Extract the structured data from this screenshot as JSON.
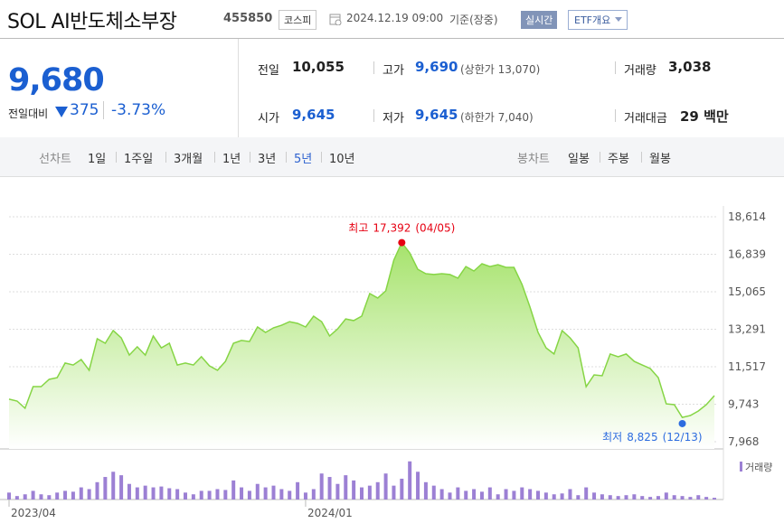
{
  "header": {
    "title": "SOL AI반도체소부장",
    "code": "455850",
    "market": "코스피",
    "datetime": "2024.12.19 09:00",
    "basis": "기준(장중)",
    "realtime": "실시간",
    "etf_info": "ETF개요"
  },
  "price": {
    "current": "9,680",
    "change_label": "전일대비",
    "change": "375",
    "change_pct": "-3.73%"
  },
  "stats": [
    {
      "label": "전일",
      "value": "10,055"
    },
    {
      "label": "고가",
      "value": "9,690",
      "note": "(상한가 13,070)"
    },
    {
      "label": "거래량",
      "value": "3,038"
    },
    {
      "label": "시가",
      "value": "9,645"
    },
    {
      "label": "저가",
      "value": "9,645",
      "note": "(하한가 7,040)"
    },
    {
      "label": "거래대금",
      "value": "29 백만"
    }
  ],
  "tabs": {
    "line_label": "선차트",
    "line_options": [
      "1일",
      "1주일",
      "3개월",
      "1년",
      "3년",
      "5년",
      "10년"
    ],
    "selected": 5,
    "candle_label": "봉차트",
    "candle_options": [
      "일봉",
      "주봉",
      "월봉"
    ]
  },
  "chart_data": [
    {
      "type": "area",
      "color": "#86d545",
      "ylim": [
        7968,
        18614
      ],
      "yticks": [
        {
          "value": 18614,
          "label": "18,614"
        },
        {
          "value": 16839,
          "label": "16,839"
        },
        {
          "value": 15065,
          "label": "15,065"
        },
        {
          "value": 13291,
          "label": "13,291"
        },
        {
          "value": 11517,
          "label": "11,517"
        },
        {
          "value": 9743,
          "label": "9,743"
        },
        {
          "value": 7968,
          "label": "7,968"
        }
      ],
      "grid": true,
      "values": [
        9980,
        9890,
        9550,
        10575,
        10575,
        10920,
        11000,
        11690,
        11600,
        11860,
        11350,
        12840,
        12630,
        13230,
        12880,
        12070,
        12460,
        12070,
        12970,
        12410,
        12630,
        11600,
        11690,
        11600,
        11990,
        11560,
        11350,
        11770,
        12630,
        12760,
        12710,
        13400,
        13140,
        13360,
        13480,
        13650,
        13570,
        13400,
        13910,
        13650,
        12970,
        13310,
        13780,
        13700,
        13910,
        14980,
        14770,
        15110,
        16560,
        17392,
        16900,
        16130,
        15920,
        15880,
        15920,
        15880,
        15710,
        16260,
        16050,
        16390,
        16260,
        16350,
        16220,
        16220,
        15410,
        14340,
        13140,
        12410,
        12120,
        13230,
        12880,
        12410,
        10570,
        11130,
        11090,
        12120,
        11990,
        12120,
        11770,
        11600,
        11430,
        11000,
        9760,
        9720,
        9120,
        9210,
        9420,
        9720,
        10150
      ],
      "annotations": [
        {
          "label": "최고",
          "value": 17392,
          "value_label": "17,392",
          "date": "(04/05)",
          "color": "#e60012"
        },
        {
          "label": "최저",
          "value": 8825,
          "value_label": "8,825",
          "date": "(12/13)",
          "color": "#2d6cdf"
        }
      ]
    },
    {
      "type": "bar",
      "name": "거래량",
      "color": "#9c80d4",
      "ylim": [
        0,
        50
      ],
      "categories": [
        "2023/04",
        null,
        null,
        null,
        null,
        null,
        null,
        null,
        null,
        null,
        null,
        null,
        null,
        null,
        null,
        null,
        null,
        null,
        null,
        null,
        null,
        null,
        null,
        null,
        null,
        null,
        null,
        null,
        null,
        null,
        null,
        null,
        null,
        null,
        null,
        null,
        null,
        "2024/01",
        null,
        null,
        null,
        null,
        null,
        null,
        null,
        null,
        null,
        null,
        null,
        null,
        null,
        null,
        null,
        null,
        null,
        null,
        null,
        null,
        null,
        null,
        null,
        null,
        null,
        null,
        null,
        null,
        null,
        null,
        null,
        null,
        null,
        null,
        null,
        null,
        null,
        null,
        null,
        null,
        null,
        null,
        null,
        null,
        null,
        null,
        null,
        null,
        null,
        null,
        null
      ],
      "values": [
        8,
        4,
        6,
        10,
        6,
        5,
        8,
        10,
        9,
        14,
        12,
        20,
        26,
        32,
        28,
        18,
        14,
        16,
        14,
        15,
        13,
        12,
        8,
        6,
        10,
        10,
        12,
        11,
        22,
        14,
        10,
        18,
        14,
        16,
        12,
        10,
        20,
        8,
        12,
        30,
        26,
        18,
        28,
        22,
        14,
        16,
        20,
        30,
        16,
        24,
        44,
        32,
        20,
        16,
        12,
        8,
        14,
        10,
        12,
        9,
        14,
        6,
        12,
        10,
        14,
        12,
        10,
        8,
        6,
        7,
        12,
        5,
        14,
        8,
        6,
        5,
        4,
        5,
        6,
        4,
        3,
        4,
        8,
        5,
        4,
        3,
        5,
        3,
        2
      ]
    }
  ]
}
